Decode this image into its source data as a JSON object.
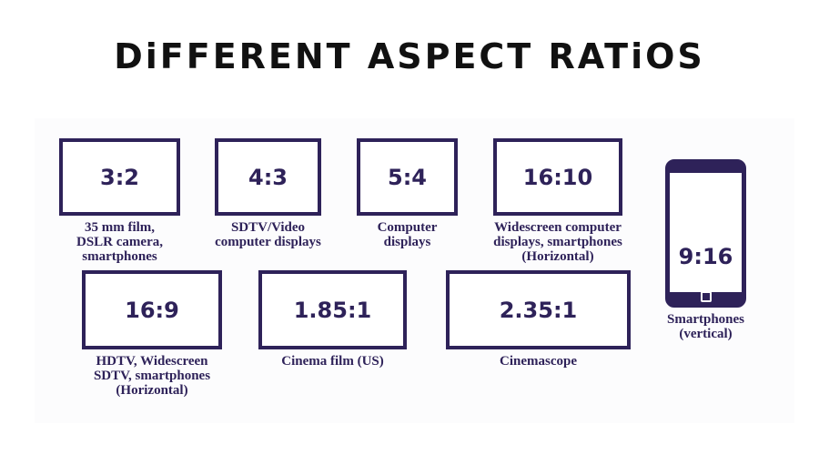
{
  "title": "DiFFERENT ASPECT RATiOS",
  "ratios": [
    {
      "ratio": "3:2",
      "label": "35 mm film,\nDSLR camera,\nsmartphones"
    },
    {
      "ratio": "4:3",
      "label": "SDTV/Video\ncomputer displays"
    },
    {
      "ratio": "5:4",
      "label": "Computer\ndisplays"
    },
    {
      "ratio": "16:10",
      "label": "Widescreen computer\ndisplays, smartphones\n(Horizontal)"
    },
    {
      "ratio": "16:9",
      "label": "HDTV, Widescreen\nSDTV, smartphones\n(Horizontal)"
    },
    {
      "ratio": "1.85:1",
      "label": "Cinema film (US)"
    },
    {
      "ratio": "2.35:1",
      "label": "Cinemascope"
    },
    {
      "ratio": "9:16",
      "label": "Smartphones\n(vertical)"
    }
  ],
  "colors": {
    "accent": "#2e2259",
    "title": "#111111"
  }
}
